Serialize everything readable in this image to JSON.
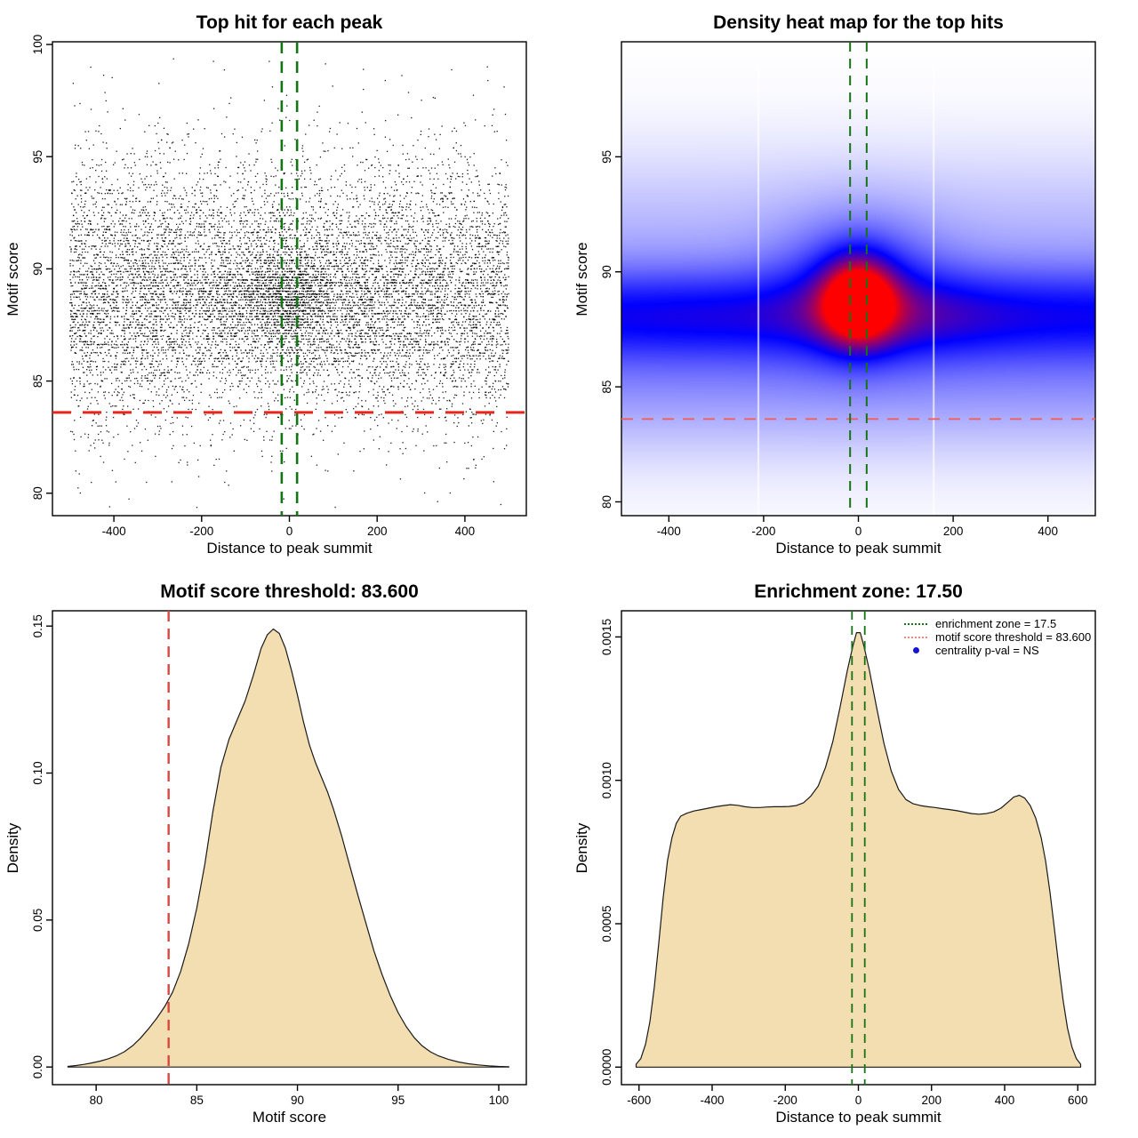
{
  "colors": {
    "background": "#ffffff",
    "box_stroke": "#000000",
    "point": "#000000",
    "wheat_fill": "#f3deb1",
    "curve_stroke": "#1a1a1a",
    "green_line": "#157515",
    "red_bright": "#e8251a",
    "red_soft": "#ee5f5f",
    "red_density": "#d9473f",
    "legend_red": "#f0837b",
    "legend_blue_dot": "#1515cd",
    "heat_blue": "#0000ff",
    "heat_red": "#ff0000"
  },
  "chart_data": [
    {
      "id": "scatter",
      "type": "scatter",
      "title": "Top hit for each peak",
      "xlabel": "Distance to peak summit",
      "ylabel": "Motif score",
      "xlim": [
        -540,
        540
      ],
      "ylim": [
        79.0,
        100.12
      ],
      "xticks": [
        -400,
        -200,
        0,
        200,
        400
      ],
      "yticks": [
        80,
        85,
        90,
        95,
        100
      ],
      "n_points": 11000,
      "seed": 1337,
      "point_size": 1.3,
      "score_quantum": 0.125,
      "x_density": [
        [
          -500,
          0.9
        ],
        [
          -300,
          0.91
        ],
        [
          -160,
          0.92
        ],
        [
          -120,
          0.97
        ],
        [
          -80,
          1.12
        ],
        [
          -50,
          1.26
        ],
        [
          -30,
          1.38
        ],
        [
          -15,
          1.47
        ],
        [
          0,
          1.52
        ],
        [
          15,
          1.47
        ],
        [
          30,
          1.38
        ],
        [
          50,
          1.25
        ],
        [
          80,
          1.12
        ],
        [
          120,
          0.97
        ],
        [
          160,
          0.92
        ],
        [
          300,
          0.9
        ],
        [
          500,
          0.9
        ]
      ],
      "y_density_ref": 2,
      "center_bias": {
        "x_sigma": 105,
        "y_mean": 88.85,
        "y_sigma": 1.25,
        "weight": 0.4
      },
      "enrichment_zone_x": [
        -17.5,
        17.5
      ],
      "score_threshold_y": 83.6
    },
    {
      "id": "heatmap",
      "type": "heatmap",
      "title": "Density heat map for the top hits",
      "xlabel": "Distance to peak summit",
      "ylabel": "Motif score",
      "xlim": [
        -500,
        500
      ],
      "ylim": [
        79.4,
        100.0
      ],
      "xticks": [
        -400,
        -200,
        0,
        200,
        400
      ],
      "yticks": [
        80,
        85,
        90,
        95
      ],
      "model": {
        "bands": [
          {
            "mu": 88.15,
            "sigma": 1.35,
            "amp": 0.5,
            "boosted": true
          },
          {
            "mu": 87.8,
            "sigma": 3.6,
            "amp": 0.3
          },
          {
            "mu": 85.2,
            "sigma": 2.2,
            "amp": 0.16
          },
          {
            "mu": 92.5,
            "sigma": 2.6,
            "amp": 0.1
          }
        ],
        "boosts": [
          {
            "center": 170,
            "sigma": 120,
            "amp": 0.18
          },
          {
            "center": -330,
            "sigma": 110,
            "amp": 0.06
          }
        ],
        "dome": {
          "x_sigma": 115,
          "mu": 89.6,
          "sigma": 2.1,
          "amp": 0.38
        },
        "hotspot": {
          "x0": 0,
          "x_sigma": 52,
          "mu": 88.75,
          "sigma": 1.3,
          "amp": 1.05
        },
        "scale": 1.55,
        "blue_point": 0.56
      },
      "artifact_lines_x": [
        -211,
        159
      ],
      "enrichment_zone_x": [
        -17.5,
        17.5
      ],
      "score_threshold_y": 83.6
    },
    {
      "id": "score_density",
      "type": "area",
      "title": "Motif score threshold: 83.600",
      "xlabel": "Motif score",
      "ylabel": "Density",
      "xlim": [
        77.83,
        101.37
      ],
      "ylim": [
        -0.006,
        0.1552
      ],
      "xticks": [
        80,
        85,
        90,
        95,
        100
      ],
      "yticks": [
        0,
        0.05,
        0.1,
        0.15
      ],
      "ytick_labels": [
        "0.00",
        "0.05",
        "0.10",
        "0.15"
      ],
      "threshold_x": 83.6,
      "curve": [
        [
          78.6,
          0.0002
        ],
        [
          79.0,
          0.0005
        ],
        [
          79.4,
          0.0009
        ],
        [
          79.8,
          0.0014
        ],
        [
          80.2,
          0.002
        ],
        [
          80.6,
          0.0028
        ],
        [
          81.0,
          0.0038
        ],
        [
          81.4,
          0.0052
        ],
        [
          81.8,
          0.0072
        ],
        [
          82.2,
          0.0098
        ],
        [
          82.6,
          0.013
        ],
        [
          83.0,
          0.0165
        ],
        [
          83.4,
          0.0205
        ],
        [
          83.8,
          0.0255
        ],
        [
          84.2,
          0.0325
        ],
        [
          84.6,
          0.042
        ],
        [
          85.0,
          0.054
        ],
        [
          85.4,
          0.069
        ],
        [
          85.8,
          0.087
        ],
        [
          86.2,
          0.102
        ],
        [
          86.6,
          0.1115
        ],
        [
          87.0,
          0.118
        ],
        [
          87.4,
          0.1245
        ],
        [
          87.8,
          0.133
        ],
        [
          88.2,
          0.1425
        ],
        [
          88.5,
          0.147
        ],
        [
          88.8,
          0.149
        ],
        [
          89.1,
          0.1475
        ],
        [
          89.4,
          0.1425
        ],
        [
          89.7,
          0.135
        ],
        [
          90.0,
          0.1265
        ],
        [
          90.3,
          0.1175
        ],
        [
          90.6,
          0.1095
        ],
        [
          90.9,
          0.1035
        ],
        [
          91.2,
          0.0985
        ],
        [
          91.5,
          0.0935
        ],
        [
          91.8,
          0.0875
        ],
        [
          92.2,
          0.0785
        ],
        [
          92.6,
          0.0685
        ],
        [
          93.0,
          0.0585
        ],
        [
          93.4,
          0.049
        ],
        [
          93.8,
          0.0395
        ],
        [
          94.2,
          0.0315
        ],
        [
          94.6,
          0.0245
        ],
        [
          95.0,
          0.0185
        ],
        [
          95.4,
          0.0138
        ],
        [
          95.8,
          0.01
        ],
        [
          96.2,
          0.0072
        ],
        [
          96.6,
          0.0052
        ],
        [
          97.0,
          0.0038
        ],
        [
          97.5,
          0.0026
        ],
        [
          98.0,
          0.0017
        ],
        [
          98.5,
          0.0011
        ],
        [
          99.0,
          0.0007
        ],
        [
          99.5,
          0.0004
        ],
        [
          100.0,
          0.0002
        ],
        [
          100.5,
          0.0001
        ]
      ]
    },
    {
      "id": "distance_density",
      "type": "area",
      "title": "Enrichment zone: 17.50",
      "xlabel": "Distance to peak summit",
      "ylabel": "Density",
      "xlim": [
        -648,
        648
      ],
      "ylim": [
        -6.12e-05,
        0.0015912
      ],
      "xticks": [
        -600,
        -400,
        -200,
        0,
        200,
        400,
        600
      ],
      "yticks": [
        0,
        0.0005,
        0.001,
        0.0015
      ],
      "ytick_labels": [
        "0.0000",
        "0.0005",
        "0.0010",
        "0.0015"
      ],
      "enrichment_zone_x": [
        -17.5,
        17.5
      ],
      "curve": [
        [
          -608,
          1e-05
        ],
        [
          -595,
          3e-05
        ],
        [
          -582,
          8e-05
        ],
        [
          -570,
          0.00016
        ],
        [
          -558,
          0.00028
        ],
        [
          -546,
          0.00043
        ],
        [
          -534,
          0.00059
        ],
        [
          -522,
          0.00072
        ],
        [
          -510,
          0.0008
        ],
        [
          -498,
          0.00085
        ],
        [
          -486,
          0.000875
        ],
        [
          -470,
          0.000885
        ],
        [
          -450,
          0.000893
        ],
        [
          -430,
          0.000898
        ],
        [
          -410,
          0.000903
        ],
        [
          -390,
          0.000908
        ],
        [
          -370,
          0.000912
        ],
        [
          -350,
          0.000915
        ],
        [
          -330,
          0.000913
        ],
        [
          -310,
          0.000908
        ],
        [
          -290,
          0.000905
        ],
        [
          -270,
          0.000905
        ],
        [
          -250,
          0.000907
        ],
        [
          -230,
          0.000908
        ],
        [
          -210,
          0.000908
        ],
        [
          -190,
          0.000909
        ],
        [
          -170,
          0.000912
        ],
        [
          -150,
          0.000922
        ],
        [
          -130,
          0.000945
        ],
        [
          -110,
          0.00098
        ],
        [
          -90,
          0.001045
        ],
        [
          -70,
          0.001135
        ],
        [
          -50,
          0.001255
        ],
        [
          -30,
          0.001385
        ],
        [
          -15,
          0.001468
        ],
        [
          -5,
          0.001515
        ],
        [
          5,
          0.001515
        ],
        [
          15,
          0.001468
        ],
        [
          30,
          0.001385
        ],
        [
          50,
          0.001252
        ],
        [
          70,
          0.001128
        ],
        [
          90,
          0.001032
        ],
        [
          110,
          0.000968
        ],
        [
          130,
          0.000933
        ],
        [
          150,
          0.000918
        ],
        [
          170,
          0.000912
        ],
        [
          190,
          0.000908
        ],
        [
          210,
          0.000905
        ],
        [
          230,
          0.000901
        ],
        [
          250,
          0.000898
        ],
        [
          270,
          0.000894
        ],
        [
          290,
          0.000889
        ],
        [
          310,
          0.000884
        ],
        [
          330,
          0.000882
        ],
        [
          350,
          0.000884
        ],
        [
          370,
          0.00089
        ],
        [
          390,
          0.000903
        ],
        [
          410,
          0.000925
        ],
        [
          425,
          0.000942
        ],
        [
          440,
          0.000948
        ],
        [
          455,
          0.000938
        ],
        [
          470,
          0.000912
        ],
        [
          485,
          0.000868
        ],
        [
          500,
          0.0008
        ],
        [
          512,
          0.000718
        ],
        [
          524,
          0.00061
        ],
        [
          536,
          0.000484
        ],
        [
          548,
          0.000352
        ],
        [
          560,
          0.000232
        ],
        [
          572,
          0.000136
        ],
        [
          584,
          7e-05
        ],
        [
          596,
          3e-05
        ],
        [
          608,
          1e-05
        ]
      ],
      "legend": {
        "items": [
          {
            "swatch": "green-dotted",
            "label": "enrichment zone = 17.5"
          },
          {
            "swatch": "red-dotted",
            "label": "motif score threshold = 83.600"
          },
          {
            "swatch": "blue-dot",
            "label": "centrality p-val = NS"
          }
        ]
      }
    }
  ]
}
